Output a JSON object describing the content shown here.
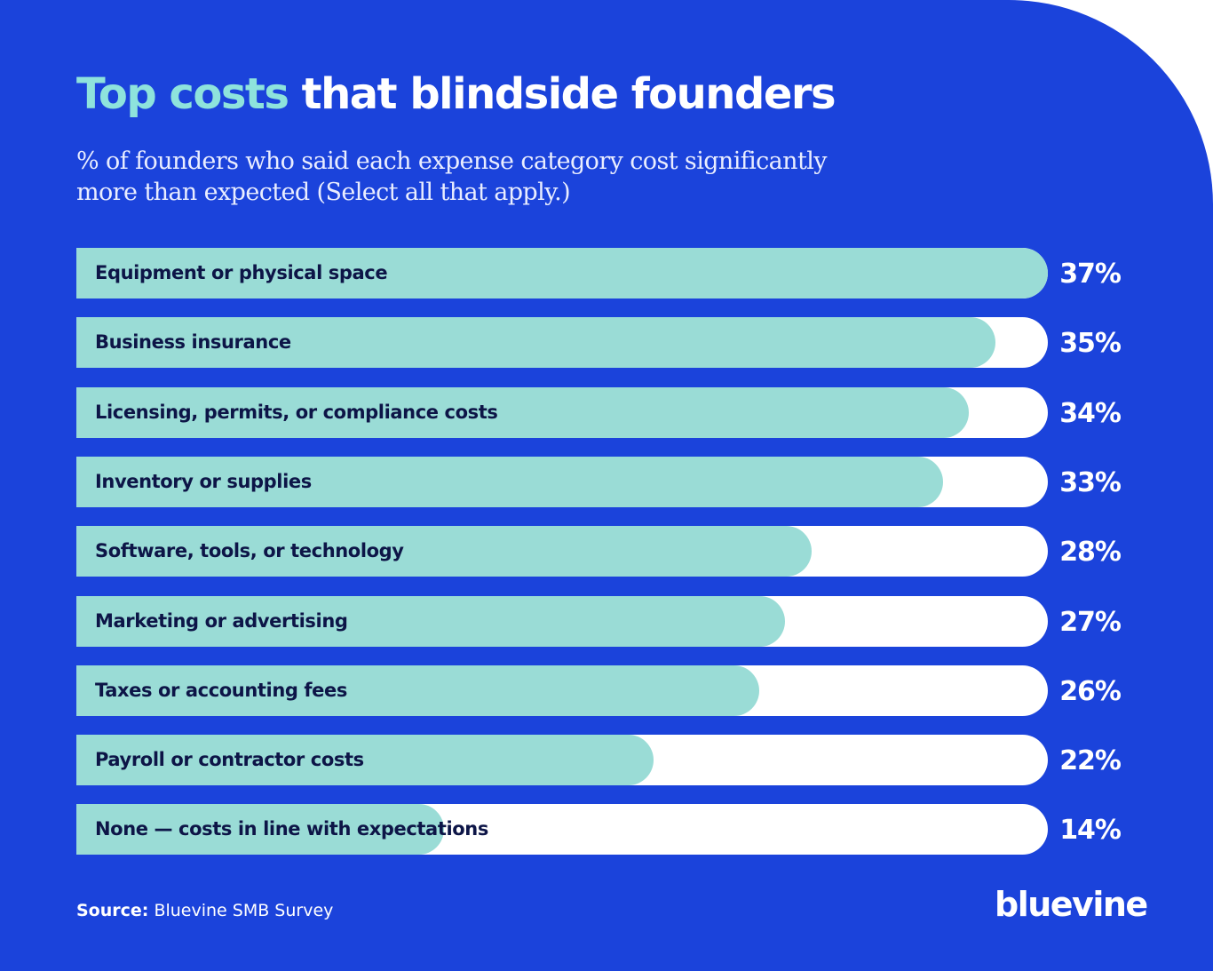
{
  "header": {
    "title_accent": "Top costs",
    "title_rest": "that blindside founders",
    "subtitle": "% of founders who said each expense category cost significantly more than expected (Select all that apply.)"
  },
  "chart_data": {
    "type": "bar",
    "orientation": "horizontal",
    "categories": [
      "Equipment or physical space",
      "Business insurance",
      "Licensing, permits, or compliance costs",
      "Inventory or supplies",
      "Software, tools, or technology",
      "Marketing or advertising",
      "Taxes or accounting fees",
      "Payroll or contractor costs",
      "None — costs in line with expectations"
    ],
    "values": [
      37,
      35,
      34,
      33,
      28,
      27,
      26,
      22,
      14
    ],
    "value_labels": [
      "37%",
      "35%",
      "34%",
      "33%",
      "28%",
      "27%",
      "26%",
      "22%",
      "14%"
    ],
    "xlim": [
      0,
      37
    ],
    "grid": false,
    "legend": "none"
  },
  "footer": {
    "source_label": "Source:",
    "source_text": "Bluevine SMB Survey",
    "logo_text": "bluevine"
  },
  "colors": {
    "background": "#1b43db",
    "bar_fill": "#9adcd6",
    "track": "#ffffff",
    "title_accent": "#8ee3dc",
    "label_text": "#0d1547"
  }
}
